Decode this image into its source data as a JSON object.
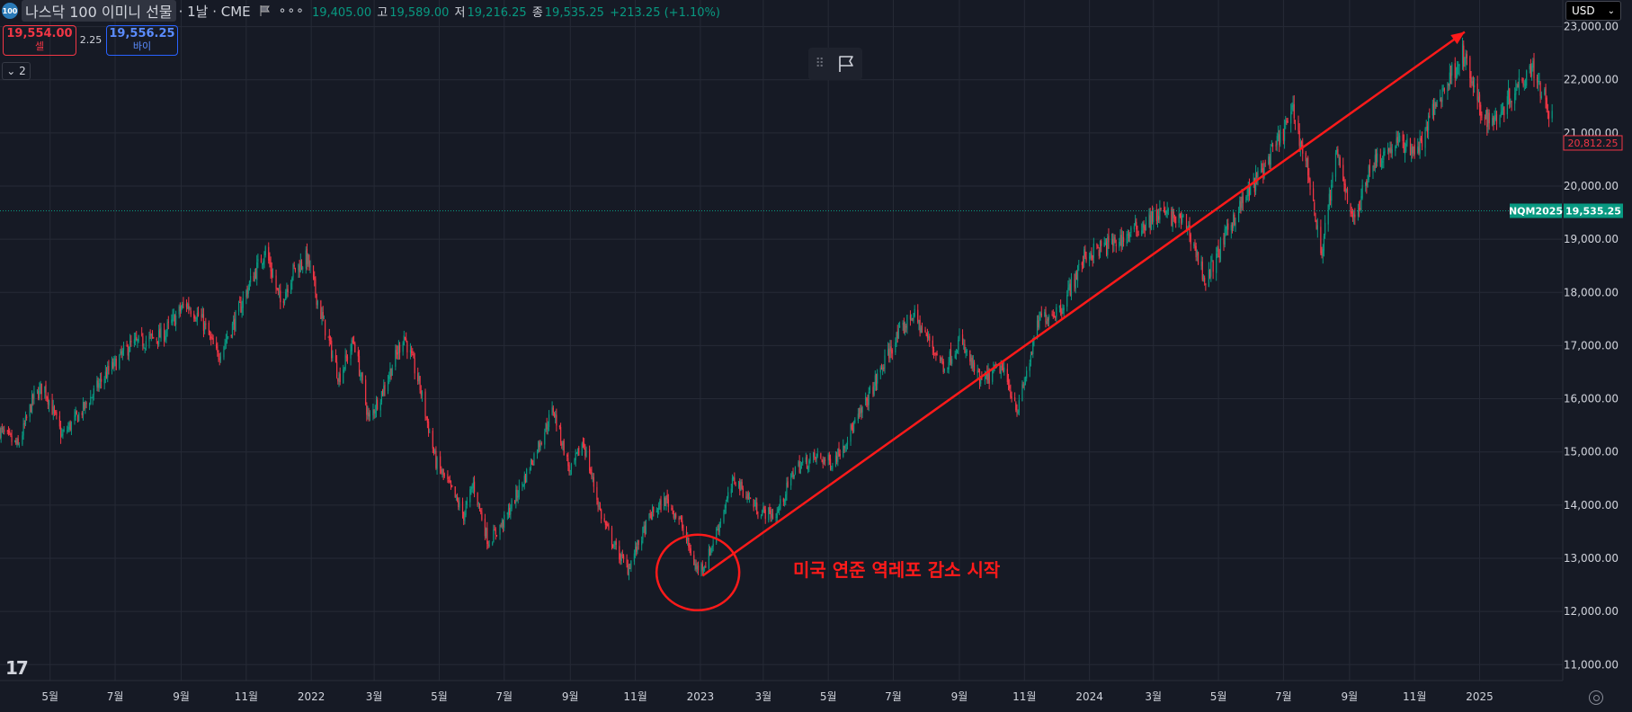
{
  "header": {
    "logo_text": "100",
    "symbol_name": "나스닥 100 이미니 선물",
    "timeframe": "· 1날 · CME",
    "more": "∘∘∘",
    "open": "19,405.00",
    "high_label": "고",
    "high": "19,589.00",
    "low_label": "저",
    "low": "19,216.25",
    "close_label": "종",
    "close": "19,535.25",
    "change": "+213.25 (+1.10%)"
  },
  "trade": {
    "sell_price": "19,554.00",
    "sell_label": "셀",
    "spread": "2.25",
    "buy_price": "19,556.25",
    "buy_label": "바이"
  },
  "indicators_toggle": "2",
  "currency": "USD",
  "colors": {
    "background": "#161a25",
    "up": "#089981",
    "down": "#f23645",
    "annotation": "#ff1a1a",
    "grid": "#262a36"
  },
  "chart_data": {
    "type": "candlestick",
    "symbol_tag": "NQM2025",
    "last_price": "19,535.25",
    "last_value": 19535.25,
    "marker_price": "20,812.25",
    "marker_value": 20812.25,
    "y_ticks": [
      {
        "value": 11000,
        "label": "11,000.00"
      },
      {
        "value": 12000,
        "label": "12,000.00"
      },
      {
        "value": 13000,
        "label": "13,000.00"
      },
      {
        "value": 14000,
        "label": "14,000.00"
      },
      {
        "value": 15000,
        "label": "15,000.00"
      },
      {
        "value": 16000,
        "label": "16,000.00"
      },
      {
        "value": 17000,
        "label": "17,000.00"
      },
      {
        "value": 18000,
        "label": "18,000.00"
      },
      {
        "value": 19000,
        "label": "19,000.00"
      },
      {
        "value": 20000,
        "label": "20,000.00"
      },
      {
        "value": 21000,
        "label": "21,000.00"
      },
      {
        "value": 22000,
        "label": "22,000.00"
      },
      {
        "value": 23000,
        "label": "23,000.00"
      }
    ],
    "x_ticks": [
      {
        "date": "2021-05",
        "label": "5월"
      },
      {
        "date": "2021-07",
        "label": "7월"
      },
      {
        "date": "2021-09",
        "label": "9월"
      },
      {
        "date": "2021-11",
        "label": "11월"
      },
      {
        "date": "2022-01",
        "label": "2022"
      },
      {
        "date": "2022-03",
        "label": "3월"
      },
      {
        "date": "2022-05",
        "label": "5월"
      },
      {
        "date": "2022-07",
        "label": "7월"
      },
      {
        "date": "2022-09",
        "label": "9월"
      },
      {
        "date": "2022-11",
        "label": "11월"
      },
      {
        "date": "2023-01",
        "label": "2023"
      },
      {
        "date": "2023-03",
        "label": "3월"
      },
      {
        "date": "2023-05",
        "label": "5월"
      },
      {
        "date": "2023-07",
        "label": "7월"
      },
      {
        "date": "2023-09",
        "label": "9월"
      },
      {
        "date": "2023-11",
        "label": "11월"
      },
      {
        "date": "2024-01",
        "label": "2024"
      },
      {
        "date": "2024-03",
        "label": "3월"
      },
      {
        "date": "2024-05",
        "label": "5월"
      },
      {
        "date": "2024-07",
        "label": "7월"
      },
      {
        "date": "2024-09",
        "label": "9월"
      },
      {
        "date": "2024-11",
        "label": "11월"
      },
      {
        "date": "2025-01",
        "label": "2025"
      }
    ],
    "ylim": [
      10700,
      23500
    ],
    "xlim": [
      "2021-03-15",
      "2025-03-20"
    ],
    "price_path": [
      [
        "2021-03-15",
        15400
      ],
      [
        "2021-04-01",
        15100
      ],
      [
        "2021-04-15",
        16000
      ],
      [
        "2021-04-25",
        16250
      ],
      [
        "2021-05-12",
        15300
      ],
      [
        "2021-06-01",
        15800
      ],
      [
        "2021-06-20",
        16400
      ],
      [
        "2021-07-15",
        17000
      ],
      [
        "2021-08-15",
        17200
      ],
      [
        "2021-09-05",
        17800
      ],
      [
        "2021-09-20",
        17500
      ],
      [
        "2021-10-05",
        16800
      ],
      [
        "2021-10-20",
        17400
      ],
      [
        "2021-11-05",
        18200
      ],
      [
        "2021-11-19",
        18800
      ],
      [
        "2021-12-03",
        17800
      ],
      [
        "2021-12-15",
        18400
      ],
      [
        "2021-12-28",
        18650
      ],
      [
        "2022-01-10",
        17600
      ],
      [
        "2022-01-27",
        16400
      ],
      [
        "2022-02-10",
        17100
      ],
      [
        "2022-02-24",
        15600
      ],
      [
        "2022-03-10",
        16200
      ],
      [
        "2022-03-29",
        17200
      ],
      [
        "2022-04-12",
        16300
      ],
      [
        "2022-04-28",
        14800
      ],
      [
        "2022-05-12",
        14300
      ],
      [
        "2022-05-24",
        13800
      ],
      [
        "2022-06-02",
        14400
      ],
      [
        "2022-06-16",
        13300
      ],
      [
        "2022-07-01",
        13700
      ],
      [
        "2022-07-20",
        14500
      ],
      [
        "2022-08-16",
        15800
      ],
      [
        "2022-09-01",
        14600
      ],
      [
        "2022-09-13",
        15200
      ],
      [
        "2022-09-30",
        13800
      ],
      [
        "2022-10-13",
        13200
      ],
      [
        "2022-10-25",
        12800
      ],
      [
        "2022-11-15",
        13800
      ],
      [
        "2022-11-30",
        14100
      ],
      [
        "2022-12-13",
        13700
      ],
      [
        "2022-12-28",
        12800
      ],
      [
        "2023-01-06",
        12900
      ],
      [
        "2023-02-02",
        14500
      ],
      [
        "2023-02-24",
        13900
      ],
      [
        "2023-03-13",
        13800
      ],
      [
        "2023-03-31",
        14700
      ],
      [
        "2023-04-20",
        14900
      ],
      [
        "2023-05-05",
        14800
      ],
      [
        "2023-05-31",
        15700
      ],
      [
        "2023-06-30",
        17000
      ],
      [
        "2023-07-19",
        17600
      ],
      [
        "2023-08-18",
        16600
      ],
      [
        "2023-09-01",
        17100
      ],
      [
        "2023-09-21",
        16300
      ],
      [
        "2023-10-10",
        16600
      ],
      [
        "2023-10-26",
        15800
      ],
      [
        "2023-11-15",
        17500
      ],
      [
        "2023-12-05",
        17700
      ],
      [
        "2023-12-28",
        18700
      ],
      [
        "2024-01-31",
        19000
      ],
      [
        "2024-03-08",
        19500
      ],
      [
        "2024-04-01",
        19300
      ],
      [
        "2024-04-19",
        18200
      ],
      [
        "2024-05-15",
        19400
      ],
      [
        "2024-06-20",
        20600
      ],
      [
        "2024-07-10",
        21400
      ],
      [
        "2024-07-25",
        20200
      ],
      [
        "2024-08-05",
        18700
      ],
      [
        "2024-08-20",
        20600
      ],
      [
        "2024-09-06",
        19300
      ],
      [
        "2024-09-20",
        20400
      ],
      [
        "2024-10-15",
        20800
      ],
      [
        "2024-11-05",
        20700
      ],
      [
        "2024-11-20",
        21500
      ],
      [
        "2024-12-16",
        22500
      ],
      [
        "2025-01-02",
        21400
      ],
      [
        "2025-01-13",
        21200
      ],
      [
        "2025-02-19",
        22300
      ],
      [
        "2025-03-10",
        21300
      ]
    ],
    "annotation": {
      "text": "미국 연준 역레포 감소 시작",
      "circle_center": [
        "2022-12-28",
        12800
      ],
      "arrow_start": [
        "2023-01-03",
        12670
      ],
      "arrow_end": [
        "2024-12-18",
        22900
      ]
    }
  }
}
